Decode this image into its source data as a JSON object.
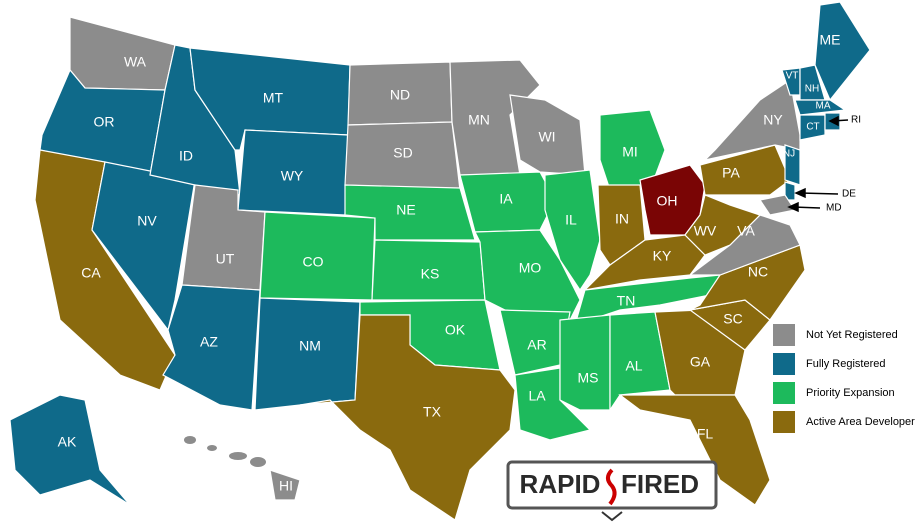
{
  "legend": [
    {
      "label": "Not Yet Registered",
      "color": "#8c8c8c"
    },
    {
      "label": "Fully Registered",
      "color": "#0f6a8a"
    },
    {
      "label": "Priority Expansion",
      "color": "#1dba5c"
    },
    {
      "label": "Active Area Developer",
      "color": "#8a6a0e"
    }
  ],
  "states": [
    {
      "abbr": "WA",
      "color": "#8c8c8c"
    },
    {
      "abbr": "OR",
      "color": "#0f6a8a"
    },
    {
      "abbr": "CA",
      "color": "#8a6a0e"
    },
    {
      "abbr": "NV",
      "color": "#0f6a8a"
    },
    {
      "abbr": "ID",
      "color": "#0f6a8a"
    },
    {
      "abbr": "MT",
      "color": "#0f6a8a"
    },
    {
      "abbr": "WY",
      "color": "#0f6a8a"
    },
    {
      "abbr": "UT",
      "color": "#8c8c8c"
    },
    {
      "abbr": "AZ",
      "color": "#0f6a8a"
    },
    {
      "abbr": "CO",
      "color": "#1dba5c"
    },
    {
      "abbr": "NM",
      "color": "#0f6a8a"
    },
    {
      "abbr": "ND",
      "color": "#8c8c8c"
    },
    {
      "abbr": "SD",
      "color": "#8c8c8c"
    },
    {
      "abbr": "NE",
      "color": "#1dba5c"
    },
    {
      "abbr": "KS",
      "color": "#1dba5c"
    },
    {
      "abbr": "OK",
      "color": "#1dba5c"
    },
    {
      "abbr": "TX",
      "color": "#8a6a0e"
    },
    {
      "abbr": "MN",
      "color": "#8c8c8c"
    },
    {
      "abbr": "IA",
      "color": "#1dba5c"
    },
    {
      "abbr": "MO",
      "color": "#1dba5c"
    },
    {
      "abbr": "AR",
      "color": "#1dba5c"
    },
    {
      "abbr": "LA",
      "color": "#1dba5c"
    },
    {
      "abbr": "WI",
      "color": "#8c8c8c"
    },
    {
      "abbr": "IL",
      "color": "#1dba5c"
    },
    {
      "abbr": "MI",
      "color": "#1dba5c"
    },
    {
      "abbr": "IN",
      "color": "#8a6a0e"
    },
    {
      "abbr": "OH",
      "color": "#7a0505"
    },
    {
      "abbr": "KY",
      "color": "#8a6a0e"
    },
    {
      "abbr": "TN",
      "color": "#1dba5c"
    },
    {
      "abbr": "MS",
      "color": "#1dba5c"
    },
    {
      "abbr": "AL",
      "color": "#1dba5c"
    },
    {
      "abbr": "GA",
      "color": "#8a6a0e"
    },
    {
      "abbr": "FL",
      "color": "#8a6a0e"
    },
    {
      "abbr": "SC",
      "color": "#8a6a0e"
    },
    {
      "abbr": "NC",
      "color": "#8a6a0e"
    },
    {
      "abbr": "VA",
      "color": "#8c8c8c"
    },
    {
      "abbr": "WV",
      "color": "#8a6a0e"
    },
    {
      "abbr": "PA",
      "color": "#8a6a0e"
    },
    {
      "abbr": "NY",
      "color": "#8c8c8c"
    },
    {
      "abbr": "VT",
      "color": "#0f6a8a"
    },
    {
      "abbr": "NH",
      "color": "#0f6a8a"
    },
    {
      "abbr": "ME",
      "color": "#0f6a8a"
    },
    {
      "abbr": "MA",
      "color": "#0f6a8a"
    },
    {
      "abbr": "CT",
      "color": "#0f6a8a"
    },
    {
      "abbr": "RI",
      "color": "#0f6a8a"
    },
    {
      "abbr": "NJ",
      "color": "#0f6a8a"
    },
    {
      "abbr": "DE",
      "color": "#0f6a8a"
    },
    {
      "abbr": "MD",
      "color": "#8c8c8c"
    },
    {
      "abbr": "AK",
      "color": "#0f6a8a"
    },
    {
      "abbr": "HI",
      "color": "#8c8c8c"
    }
  ],
  "logo": {
    "left": "RAPID",
    "right": "FIRED"
  }
}
